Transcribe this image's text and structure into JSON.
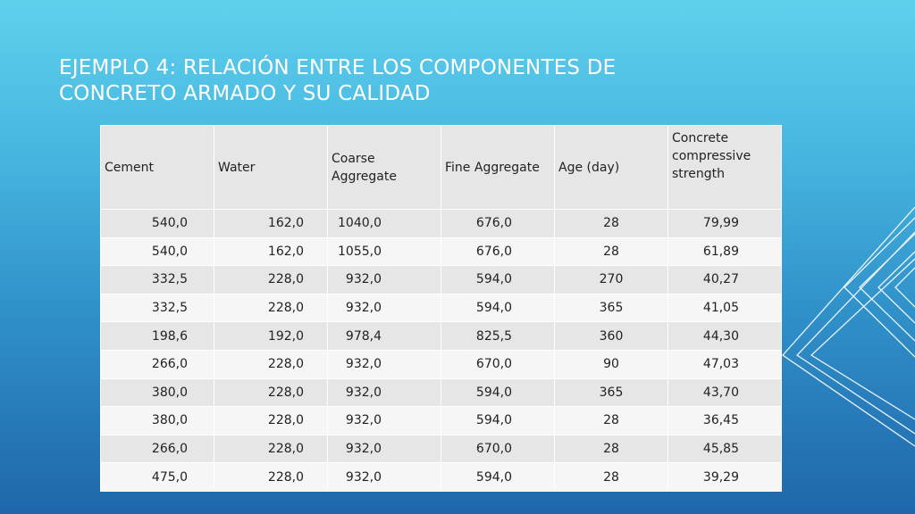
{
  "slide": {
    "title_line1": "Ejemplo 4: Relación entre los componentes de",
    "title_line2": "concreto armado y su calidad"
  },
  "table": {
    "headers": [
      "Cement",
      "Water",
      "Coarse Aggregate",
      "Fine Aggregate",
      "Age (day)",
      "Concrete compressive strength"
    ],
    "rows": [
      [
        "540,0",
        "162,0",
        "1040,0",
        "676,0",
        "28",
        "79,99"
      ],
      [
        "540,0",
        "162,0",
        "1055,0",
        "676,0",
        "28",
        "61,89"
      ],
      [
        "332,5",
        "228,0",
        "932,0",
        "594,0",
        "270",
        "40,27"
      ],
      [
        "332,5",
        "228,0",
        "932,0",
        "594,0",
        "365",
        "41,05"
      ],
      [
        "198,6",
        "192,0",
        "978,4",
        "825,5",
        "360",
        "44,30"
      ],
      [
        "266,0",
        "228,0",
        "932,0",
        "670,0",
        "90",
        "47,03"
      ],
      [
        "380,0",
        "228,0",
        "932,0",
        "594,0",
        "365",
        "43,70"
      ],
      [
        "380,0",
        "228,0",
        "932,0",
        "594,0",
        "28",
        "36,45"
      ],
      [
        "266,0",
        "228,0",
        "932,0",
        "670,0",
        "28",
        "45,85"
      ],
      [
        "475,0",
        "228,0",
        "932,0",
        "594,0",
        "28",
        "39,29"
      ]
    ]
  },
  "colors": {
    "background_top": "#5fd0ec",
    "background_bottom": "#1f66ab",
    "title": "#ffffff",
    "table_header": "#e6e6e6",
    "table_row_even": "#f6f6f6",
    "table_row_odd": "#e6e6e6"
  }
}
